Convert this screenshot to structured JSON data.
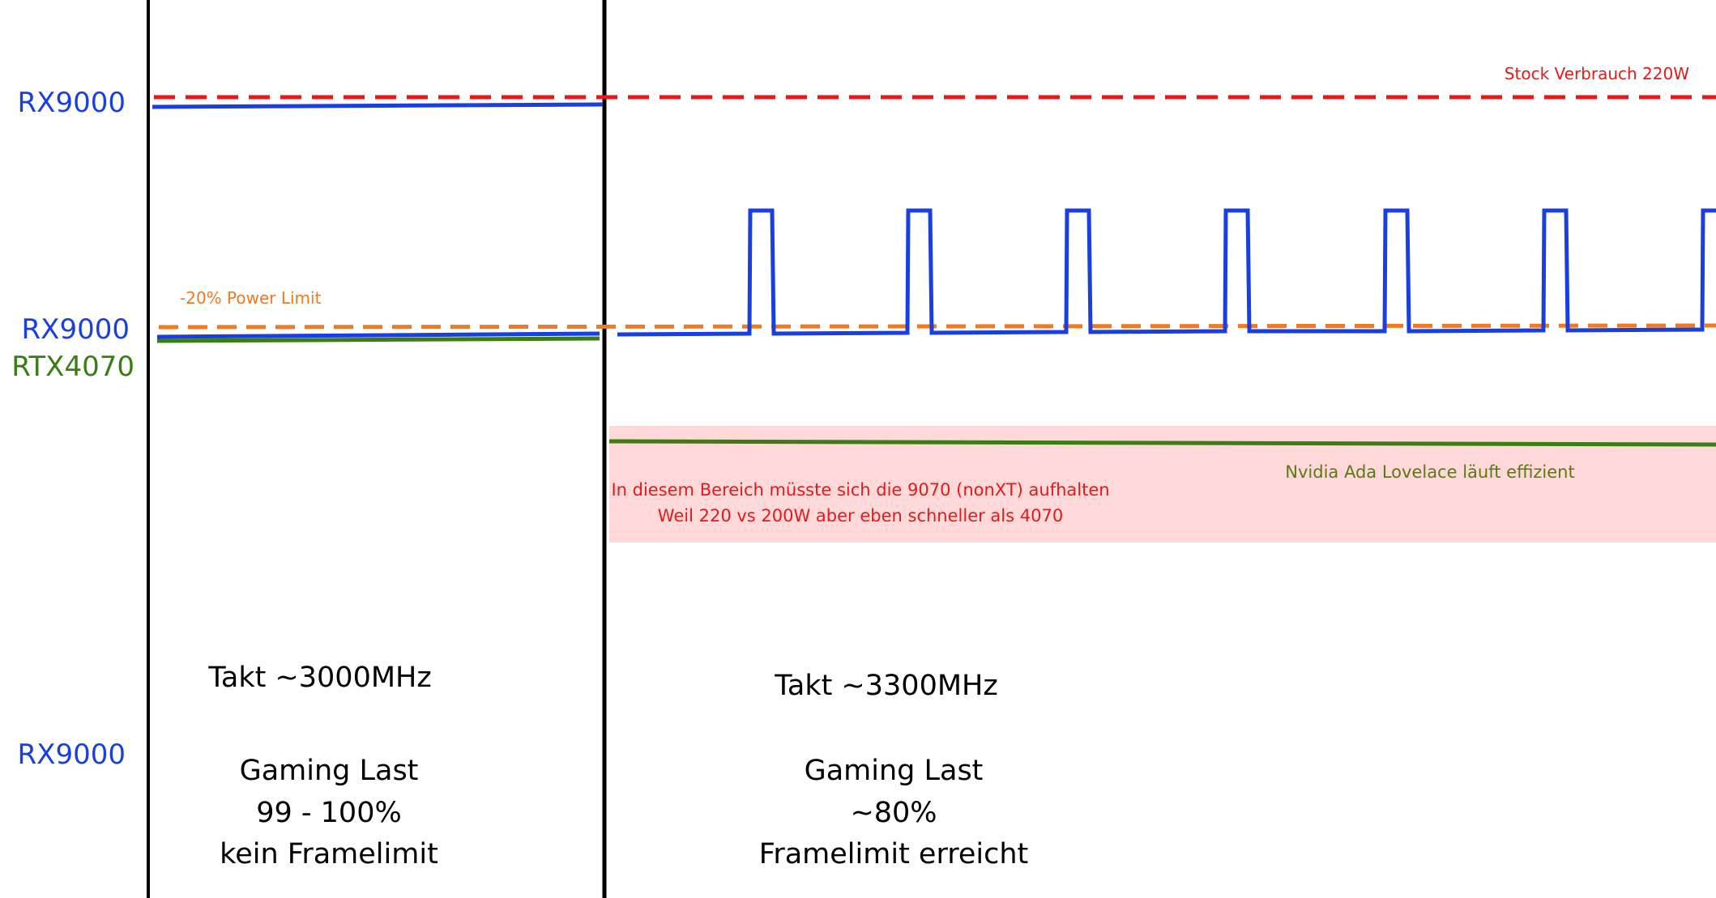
{
  "labels": {
    "rx9000_top": "RX9000",
    "rx9000_mid": "RX9000",
    "rtx4070": "RTX4070",
    "rx9000_bottom": "RX9000",
    "stock_power": "Stock Verbrauch 220W",
    "power_limit": "-20% Power Limit",
    "region_text_line1": "In diesem Bereich müsste sich die 9070 (nonXT) aufhalten",
    "region_text_line2": "Weil 220 vs 200W aber eben schneller als 4070",
    "nvidia_note": "Nvidia Ada Lovelace läuft effizient"
  },
  "left_panel": {
    "clock": "Takt ~3000MHz",
    "load_title": "Gaming Last",
    "load_value": "99 - 100%",
    "frame_note": "kein Framelimit"
  },
  "right_panel": {
    "clock": "Takt ~3300MHz",
    "load_title": "Gaming Last",
    "load_value": "~80%",
    "frame_note": "Framelimit erreicht"
  },
  "colors": {
    "rx_blue": "#1a3fe0",
    "rtx_green": "#3a7d12",
    "nvidia_text": "#5a7a10",
    "stock_red": "#e61919",
    "limit_orange": "#f07a22",
    "region_fill": "#ffd9d9",
    "divider": "#000000"
  }
}
